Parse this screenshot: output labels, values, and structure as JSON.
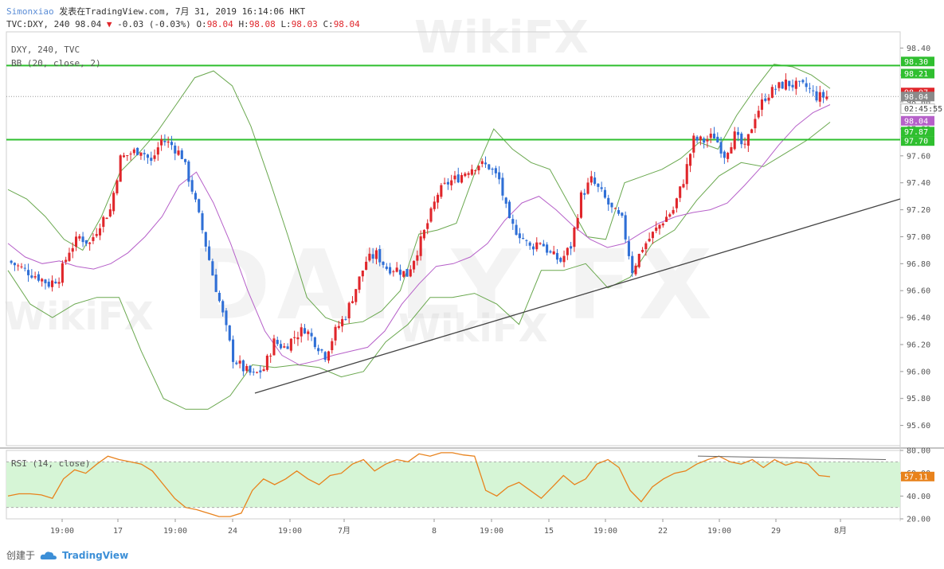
{
  "header": {
    "author": "Simonxiao",
    "published": "发表在TradingView.com, 7月 31, 2019 16:14:06 HKT",
    "symbol_line": "TVC:DXY, 240 98.04",
    "change": "-0.03 (-0.03%)",
    "ohlc": {
      "o_label": "O:",
      "o": "98.04",
      "h_label": "H:",
      "h": "98.08",
      "l_label": "L:",
      "l": "98.03",
      "c_label": "C:",
      "c": "98.04"
    }
  },
  "legend": {
    "main": "DXY, 240, TVC",
    "bb": "BB (20, close, 2)",
    "rsi": "RSI (14, close)"
  },
  "footer": {
    "created": "创建于",
    "brand": "TradingView"
  },
  "watermarks": {
    "logo": "DAILY FX",
    "wikifx": "WikiFX"
  },
  "colors": {
    "up": "#e0262b",
    "down": "#2f6fd6",
    "bb_band": "#6aa84f",
    "bb_basis": "#b660c9",
    "hline": "#2fbf2f",
    "trendline": "#444444",
    "rsi_line": "#e8821c",
    "rsi_zone": "#d6f5d6"
  },
  "chart_data": [
    {
      "type": "candlestick",
      "title": "DXY, 240, TVC",
      "ylim": [
        95.45,
        98.52
      ],
      "y_ticks": [
        "98.40",
        "98.20",
        "98.00",
        "97.80",
        "97.60",
        "97.40",
        "97.20",
        "97.00",
        "96.80",
        "96.60",
        "96.40",
        "96.20",
        "96.00",
        "95.80",
        "95.60"
      ],
      "x_ticks": [
        "19:00",
        "17",
        "19:00",
        "24",
        "19:00",
        "7月",
        "8",
        "19:00",
        "15",
        "19:00",
        "22",
        "19:00",
        "29",
        "8月"
      ],
      "close_path": [
        96.82,
        96.78,
        96.74,
        96.7,
        96.65,
        96.7,
        96.9,
        97.0,
        96.95,
        97.1,
        97.2,
        97.58,
        97.62,
        97.65,
        97.55,
        97.72,
        97.68,
        97.6,
        97.35,
        97.05,
        96.72,
        96.42,
        96.1,
        96.02,
        95.97,
        96.02,
        96.22,
        96.18,
        96.26,
        96.32,
        96.22,
        96.12,
        96.3,
        96.42,
        96.62,
        96.82,
        96.87,
        96.77,
        96.76,
        96.72,
        96.9,
        97.1,
        97.32,
        97.4,
        97.44,
        97.5,
        97.54,
        97.52,
        97.42,
        97.1,
        97.02,
        96.92,
        96.97,
        96.87,
        96.82,
        96.93,
        97.3,
        97.42,
        97.32,
        97.2,
        97.12,
        96.75,
        96.92,
        97.02,
        97.12,
        97.2,
        97.42,
        97.72,
        97.71,
        97.75,
        97.61,
        97.75,
        97.65,
        97.9,
        98.04,
        98.1,
        98.14,
        98.12,
        98.11,
        98.04,
        98.04
      ],
      "bb_upper": [
        97.35,
        97.28,
        97.15,
        96.98,
        96.9,
        97.15,
        97.48,
        97.62,
        97.78,
        97.98,
        98.18,
        98.23,
        98.12,
        97.82,
        97.42,
        97.0,
        96.55,
        96.4,
        96.35,
        96.37,
        96.45,
        96.6,
        97.02,
        97.05,
        97.1,
        97.48,
        97.8,
        97.65,
        97.55,
        97.5,
        97.25,
        97.0,
        96.98,
        97.4,
        97.45,
        97.5,
        97.58,
        97.7,
        97.65,
        97.9,
        98.1,
        98.28,
        98.26,
        98.2,
        98.1
      ],
      "bb_lower": [
        96.75,
        96.5,
        96.4,
        96.5,
        96.55,
        96.55,
        96.15,
        95.8,
        95.72,
        95.72,
        95.82,
        96.05,
        96.03,
        96.05,
        96.03,
        95.96,
        96.0,
        96.22,
        96.35,
        96.55,
        96.55,
        96.58,
        96.5,
        96.35,
        96.75,
        96.75,
        96.8,
        96.62,
        96.7,
        96.95,
        97.05,
        97.27,
        97.45,
        97.55,
        97.52,
        97.62,
        97.72,
        97.85
      ],
      "bb_basis": [
        96.95,
        96.85,
        96.8,
        96.82,
        96.78,
        96.76,
        96.8,
        96.88,
        97.0,
        97.15,
        97.38,
        97.48,
        97.25,
        96.95,
        96.6,
        96.3,
        96.12,
        96.05,
        96.08,
        96.12,
        96.15,
        96.18,
        96.3,
        96.5,
        96.65,
        96.78,
        96.8,
        96.85,
        96.95,
        97.12,
        97.25,
        97.3,
        97.2,
        97.08,
        96.98,
        96.92,
        96.95,
        97.03,
        97.1,
        97.15,
        97.18,
        97.2,
        97.25,
        97.38,
        97.52,
        97.68,
        97.82,
        97.92,
        97.98
      ],
      "horizontal_lines": [
        98.27,
        97.72
      ],
      "dotted_last_price": 98.04,
      "trendline": {
        "start": [
          95.84
        ],
        "end": [
          97.28
        ]
      },
      "price_tags": [
        {
          "label": "98.30",
          "value": 98.3,
          "color": "#2fbf2f"
        },
        {
          "label": "98.21",
          "value": 98.21,
          "color": "#2fbf2f"
        },
        {
          "label": "98.07",
          "value": 98.07,
          "color": "#e0262b"
        },
        {
          "label": "98.04",
          "value": 98.04,
          "color": "#8a8a8a"
        },
        {
          "label": "02:45:55",
          "value": 97.95,
          "color": "#ffffff"
        },
        {
          "label": "98.04",
          "value": 97.86,
          "color": "#b660c9"
        },
        {
          "label": "97.87",
          "value": 97.78,
          "color": "#2fbf2f"
        },
        {
          "label": "97.70",
          "value": 97.71,
          "color": "#2fbf2f"
        }
      ]
    },
    {
      "type": "line",
      "title": "RSI (14, close)",
      "ylim": [
        20,
        80
      ],
      "y_ticks": [
        "80.00",
        "60.00",
        "40.00",
        "20.00"
      ],
      "band": [
        30,
        70
      ],
      "values": [
        40,
        42,
        42,
        41,
        38,
        55,
        63,
        60,
        68,
        75,
        72,
        70,
        68,
        62,
        50,
        38,
        30,
        28,
        25,
        22,
        22,
        25,
        45,
        55,
        50,
        55,
        62,
        55,
        50,
        58,
        60,
        68,
        72,
        62,
        68,
        72,
        70,
        77,
        75,
        78,
        78,
        76,
        75,
        45,
        40,
        48,
        52,
        45,
        38,
        48,
        58,
        50,
        55,
        68,
        72,
        65,
        45,
        35,
        48,
        55,
        60,
        62,
        68,
        72,
        75,
        70,
        68,
        72,
        65,
        72,
        67,
        70,
        68,
        58,
        57
      ],
      "divergence_line": {
        "start": 75,
        "end": 72
      },
      "last_tag": {
        "label": "57.11",
        "value": 57.11,
        "color": "#e8821c"
      }
    }
  ]
}
